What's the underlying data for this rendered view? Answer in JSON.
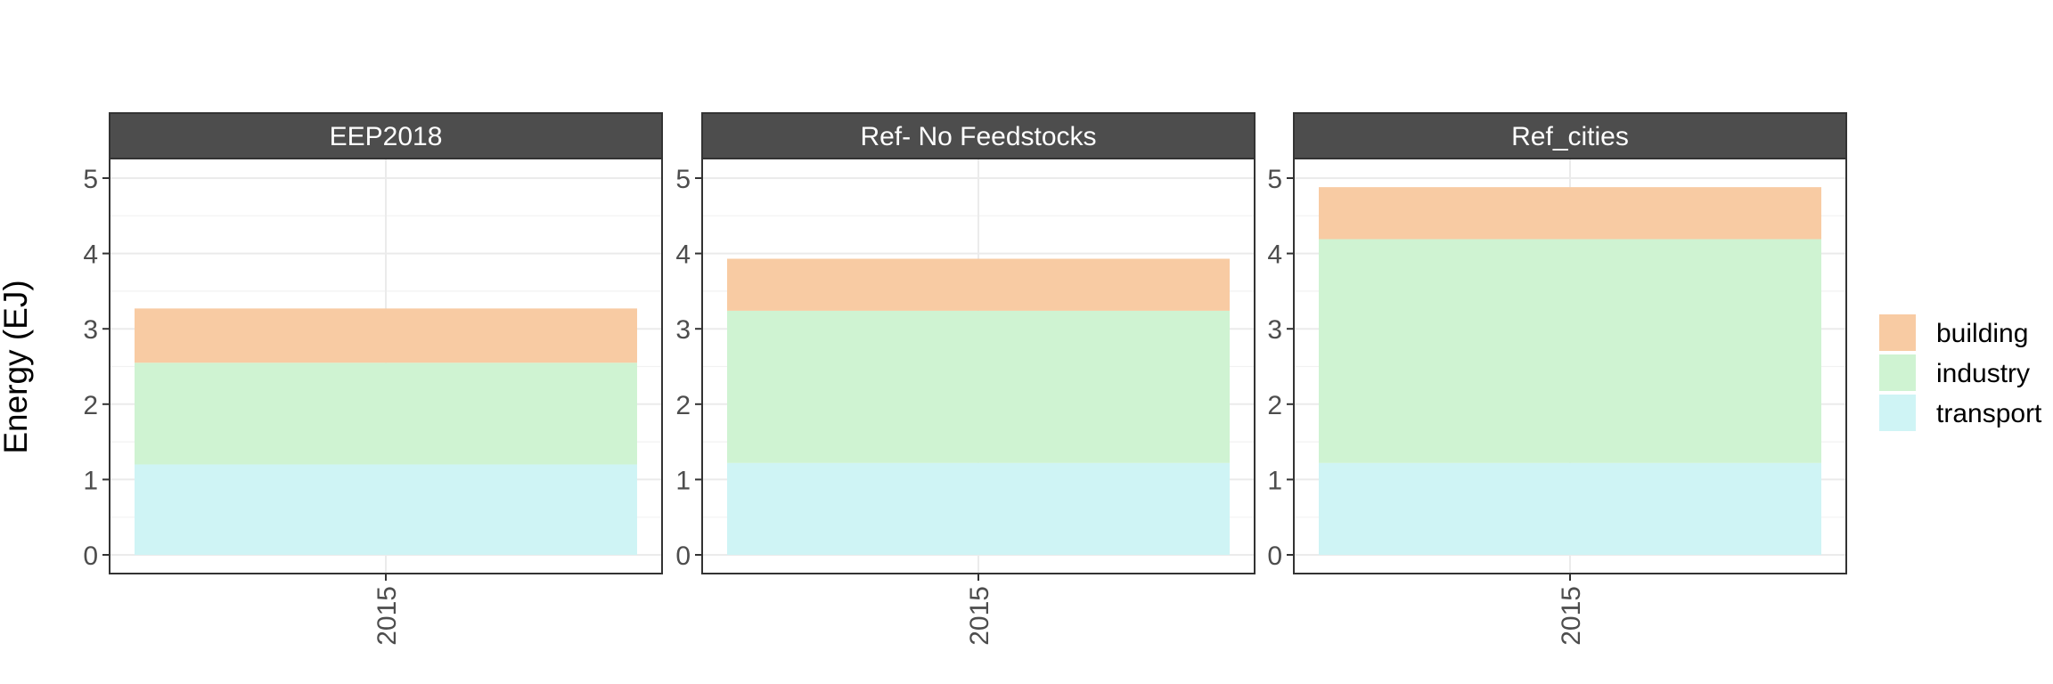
{
  "chart_data": {
    "type": "bar",
    "stacked": true,
    "ylabel": "Energy (EJ)",
    "xlabel": "",
    "ylim": [
      0,
      5.2
    ],
    "yticks": [
      0,
      1,
      2,
      3,
      4,
      5
    ],
    "grid": true,
    "legend_position": "right",
    "categories": [
      "2015"
    ],
    "stack_order": [
      "transport",
      "industry",
      "building"
    ],
    "legend_entries": [
      "building",
      "industry",
      "transport"
    ],
    "colors": {
      "building": "#f8cba3",
      "industry": "#cff3d2",
      "transport": "#cff4f5",
      "strip": "#4d4d4d"
    },
    "panels": [
      {
        "title": "EEP2018",
        "series": [
          {
            "name": "transport",
            "values": [
              1.2
            ]
          },
          {
            "name": "industry",
            "values": [
              1.35
            ]
          },
          {
            "name": "building",
            "values": [
              0.72
            ]
          }
        ]
      },
      {
        "title": "Ref- No Feedstocks",
        "series": [
          {
            "name": "transport",
            "values": [
              1.22
            ]
          },
          {
            "name": "industry",
            "values": [
              2.02
            ]
          },
          {
            "name": "building",
            "values": [
              0.69
            ]
          }
        ]
      },
      {
        "title": "Ref_cities",
        "series": [
          {
            "name": "transport",
            "values": [
              1.22
            ]
          },
          {
            "name": "industry",
            "values": [
              2.97
            ]
          },
          {
            "name": "building",
            "values": [
              0.69
            ]
          }
        ]
      }
    ]
  }
}
